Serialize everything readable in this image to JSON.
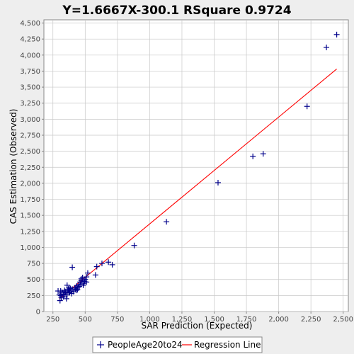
{
  "chart_data": {
    "type": "scatter",
    "title": "Y=1.6667X-300.1    RSquare 0.9724",
    "xlabel": "SAR Prediction (Expected)",
    "ylabel": "CAS Estimation (Observed)",
    "xlim": [
      180,
      2540
    ],
    "ylim": [
      0,
      4550
    ],
    "xticks": [
      250,
      500,
      750,
      1000,
      1250,
      1500,
      1750,
      2000,
      2250,
      2500
    ],
    "yticks": [
      0,
      250,
      500,
      750,
      1000,
      1250,
      1500,
      1750,
      2000,
      2250,
      2500,
      2750,
      3000,
      3250,
      3500,
      3750,
      4000,
      4250,
      4500
    ],
    "xtick_labels": [
      "250",
      "500",
      "750",
      "1,000",
      "1,250",
      "1,500",
      "1,750",
      "2,000",
      "2,250",
      "2,500"
    ],
    "ytick_labels": [
      "0",
      "250",
      "500",
      "750",
      "1,000",
      "1,250",
      "1,500",
      "1,750",
      "2,000",
      "2,250",
      "2,500",
      "2,750",
      "3,000",
      "3,250",
      "3,500",
      "3,750",
      "4,000",
      "4,250",
      "4,500"
    ],
    "grid": true,
    "series": [
      {
        "name": "PeopleAge20to24",
        "type": "scatter",
        "marker": "+",
        "color": "#00008b",
        "points": [
          [
            2450,
            4320
          ],
          [
            2370,
            4120
          ],
          [
            2220,
            3200
          ],
          [
            1880,
            2460
          ],
          [
            1800,
            2420
          ],
          [
            1530,
            2010
          ],
          [
            1130,
            1400
          ],
          [
            880,
            1030
          ],
          [
            710,
            730
          ],
          [
            680,
            770
          ],
          [
            630,
            750
          ],
          [
            590,
            700
          ],
          [
            580,
            570
          ],
          [
            520,
            600
          ],
          [
            510,
            540
          ],
          [
            510,
            460
          ],
          [
            500,
            500
          ],
          [
            490,
            440
          ],
          [
            480,
            530
          ],
          [
            470,
            510
          ],
          [
            470,
            480
          ],
          [
            460,
            460
          ],
          [
            450,
            420
          ],
          [
            445,
            380
          ],
          [
            440,
            340
          ],
          [
            430,
            330
          ],
          [
            420,
            370
          ],
          [
            400,
            690
          ],
          [
            400,
            350
          ],
          [
            390,
            320
          ],
          [
            380,
            300
          ],
          [
            375,
            370
          ],
          [
            370,
            350
          ],
          [
            360,
            410
          ],
          [
            360,
            260
          ],
          [
            355,
            200
          ],
          [
            350,
            290
          ],
          [
            340,
            330
          ],
          [
            330,
            270
          ],
          [
            320,
            300
          ],
          [
            310,
            250
          ],
          [
            310,
            320
          ],
          [
            305,
            170
          ],
          [
            300,
            260
          ],
          [
            290,
            320
          ],
          [
            340,
            260
          ],
          [
            365,
            330
          ],
          [
            385,
            360
          ],
          [
            395,
            280
          ],
          [
            410,
            310
          ],
          [
            425,
            350
          ],
          [
            455,
            390
          ],
          [
            465,
            420
          ],
          [
            485,
            410
          ],
          [
            495,
            470
          ],
          [
            330,
            230
          ],
          [
            315,
            220
          ],
          [
            345,
            310
          ],
          [
            375,
            290
          ],
          [
            435,
            400
          ]
        ]
      },
      {
        "name": "Regression Line",
        "type": "line",
        "color": "#ff0000",
        "slope": 1.6667,
        "intercept": -300.1,
        "x_range": [
          300,
          2450
        ]
      }
    ],
    "legend": {
      "position": "bottom"
    }
  }
}
